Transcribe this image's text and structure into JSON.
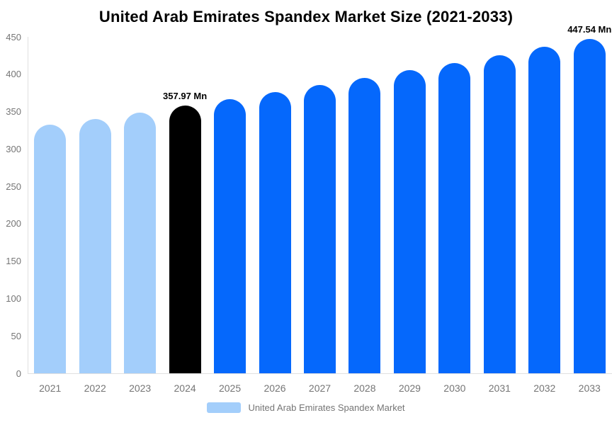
{
  "title": "United Arab Emirates Spandex Market Size (2021-2033)",
  "legend": {
    "label": "United Arab Emirates Spandex Market",
    "swatch_color": "#A3CEFB"
  },
  "palette": {
    "historical": "#A3CEFB",
    "current": "#000000",
    "forecast": "#0568FC",
    "axis_line": "#E0E0E0",
    "tick_label_color": "#757575",
    "data_label_color": "#000000",
    "background": "#FFFFFF"
  },
  "chart_data": {
    "type": "bar",
    "title": "United Arab Emirates Spandex Market Size (2021-2033)",
    "series_name": "United Arab Emirates Spandex Market",
    "xlabel": "",
    "ylabel": "",
    "ylim": [
      0,
      450
    ],
    "y_ticks": [
      0,
      50,
      100,
      150,
      200,
      250,
      300,
      350,
      400,
      450
    ],
    "grid": false,
    "legend_position": "bottom",
    "unit": "Mn",
    "categories": [
      "2021",
      "2022",
      "2023",
      "2024",
      "2025",
      "2026",
      "2027",
      "2028",
      "2029",
      "2030",
      "2031",
      "2032",
      "2033"
    ],
    "values": [
      332.2,
      340.5,
      349.0,
      357.97,
      367.0,
      376.2,
      385.6,
      395.3,
      405.2,
      415.4,
      425.8,
      436.5,
      447.54
    ],
    "segments": [
      "historical",
      "historical",
      "historical",
      "current",
      "forecast",
      "forecast",
      "forecast",
      "forecast",
      "forecast",
      "forecast",
      "forecast",
      "forecast",
      "forecast"
    ],
    "data_labels": [
      {
        "category": "2024",
        "text": "357.97 Mn"
      },
      {
        "category": "2033",
        "text": "447.54 Mn"
      }
    ]
  }
}
